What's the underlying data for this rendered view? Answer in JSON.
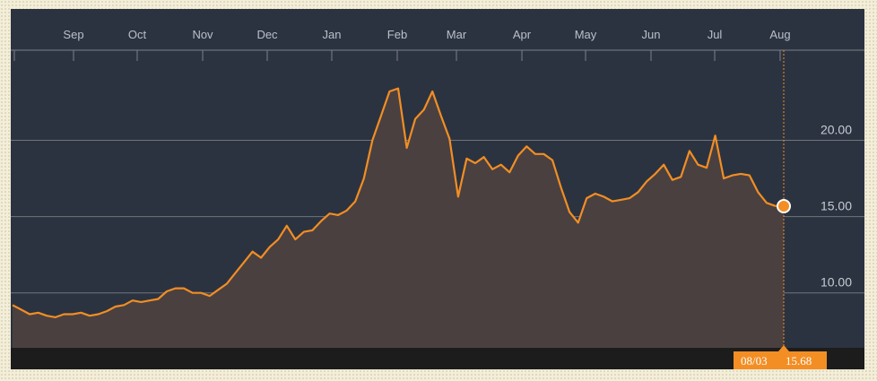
{
  "colors": {
    "panel": "#2c3340",
    "bottom_bar": "#1c1c1c",
    "line": "#f28e24",
    "area": "#4a4040",
    "grid": "#6f747c",
    "badge": "#f28e24"
  },
  "chart_data": {
    "type": "area",
    "title": "",
    "xlabel": "",
    "ylabel": "",
    "x_tick_labels": [
      "Sep",
      "Oct",
      "Nov",
      "Dec",
      "Jan",
      "Feb",
      "Mar",
      "Apr",
      "May",
      "Jun",
      "Jul",
      "Aug"
    ],
    "y_ticks": [
      10.0,
      15.0,
      20.0
    ],
    "y_tick_labels": [
      "10.00",
      "15.00",
      "20.00"
    ],
    "ylim": [
      6.4,
      25.9
    ],
    "grid": "horizontal",
    "months_start": "Aug 2017",
    "series": [
      {
        "values": [
          9.2,
          8.9,
          8.6,
          8.7,
          8.5,
          8.4,
          8.6,
          8.6,
          8.7,
          8.5,
          8.6,
          8.8,
          9.1,
          9.2,
          9.5,
          9.4,
          9.5,
          9.6,
          10.1,
          10.3,
          10.3,
          10.0,
          10.0,
          9.8,
          10.2,
          10.6,
          11.3,
          12.0,
          12.7,
          12.3,
          13.0,
          13.5,
          14.4,
          13.5,
          14.0,
          14.1,
          14.7,
          15.2,
          15.1,
          15.4,
          16.0,
          17.5,
          20.0,
          21.6,
          23.2,
          23.4,
          19.5,
          21.4,
          22.0,
          23.2,
          21.6,
          20.1,
          16.3,
          18.8,
          18.5,
          18.9,
          18.1,
          18.4,
          17.9,
          19.0,
          19.6,
          19.1,
          19.1,
          18.7,
          16.9,
          15.3,
          14.6,
          16.2,
          16.5,
          16.3,
          16.0,
          16.1,
          16.2,
          16.6,
          17.3,
          17.8,
          18.4,
          17.4,
          17.6,
          19.3,
          18.4,
          18.2,
          20.3,
          17.5,
          17.7,
          17.8,
          17.7,
          16.6,
          15.9,
          15.7,
          15.68
        ]
      }
    ],
    "current_point": {
      "date": "08/03",
      "value": 15.68
    }
  },
  "badge": {
    "date": "08/03",
    "value": "15.68"
  }
}
